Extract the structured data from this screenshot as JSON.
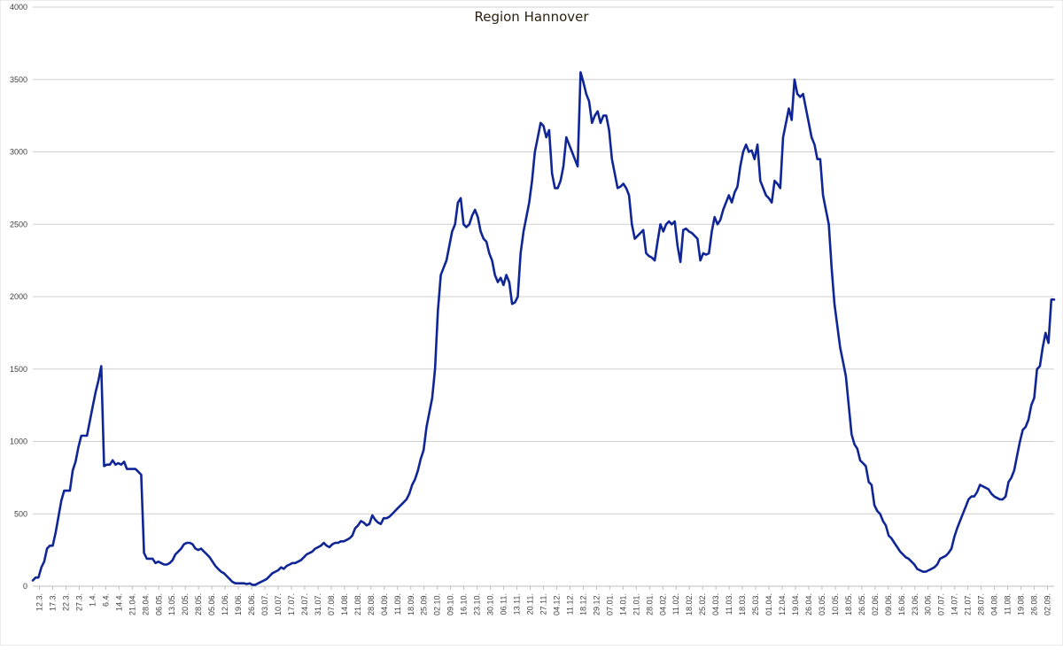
{
  "chart_data": {
    "type": "line",
    "title": "Region Hannover",
    "xlabel": "",
    "ylabel": "",
    "ylim": [
      0,
      4000
    ],
    "y_ticks": [
      0,
      500,
      1000,
      1500,
      2000,
      2500,
      3000,
      3500,
      4000
    ],
    "grid": true,
    "legend": "none",
    "line_color": "#102596",
    "x_tick_labels": [
      "12.3.",
      "17.3.",
      "22.3.",
      "27.3.",
      "1.4.",
      "6.4.",
      "14.4.",
      "21.04.",
      "28.04.",
      "06.05.",
      "13.05.",
      "20.05.",
      "28.05.",
      "05.06.",
      "12.06.",
      "19.06.",
      "26.06.",
      "03.07.",
      "10.07.",
      "17.07.",
      "24.07.",
      "31.07.",
      "07.08.",
      "14.08.",
      "21.08.",
      "28.08.",
      "04.09.",
      "11.09.",
      "18.09.",
      "25.09.",
      "02.10.",
      "09.10.",
      "16.10.",
      "23.10.",
      "30.10.",
      "06.11.",
      "13.11.",
      "20.11.",
      "27.11.",
      "04.12.",
      "11.12.",
      "18.12.",
      "29.12.",
      "07.01.",
      "14.01.",
      "21.01.",
      "28.01.",
      "04.02.",
      "11.02.",
      "18.02.",
      "25.02.",
      "04.03.",
      "11.03.",
      "18.03.",
      "25.03.",
      "01.04.",
      "12.04.",
      "19.04.",
      "26.04.",
      "03.05.",
      "10.05.",
      "18.05.",
      "26.05.",
      "02.06.",
      "09.06.",
      "16.06.",
      "23.06.",
      "30.06.",
      "07.07.",
      "14.07.",
      "21.07.",
      "28.07.",
      "04.08.",
      "11.08.",
      "19.08.",
      "26.08.",
      "02.09."
    ],
    "series": [
      {
        "values": [
          40,
          60,
          60,
          130,
          170,
          260,
          280,
          280,
          370,
          480,
          590,
          660,
          660,
          660,
          800,
          860,
          960,
          1040,
          1040,
          1040,
          1140,
          1240,
          1340,
          1420,
          1520,
          830,
          840,
          840,
          870,
          840,
          850,
          840,
          860,
          810,
          810,
          810,
          810,
          790,
          770,
          230,
          190,
          190,
          190,
          160,
          170,
          160,
          150,
          150,
          160,
          180,
          220,
          240,
          260,
          290,
          300,
          300,
          290,
          260,
          250,
          260,
          240,
          220,
          200,
          170,
          140,
          120,
          100,
          90,
          70,
          50,
          30,
          20,
          20,
          20,
          20,
          15,
          20,
          10,
          10,
          20,
          30,
          40,
          50,
          70,
          90,
          100,
          110,
          130,
          120,
          140,
          150,
          160,
          160,
          170,
          180,
          200,
          220,
          230,
          240,
          260,
          270,
          280,
          300,
          280,
          270,
          290,
          300,
          300,
          310,
          310,
          320,
          330,
          350,
          400,
          420,
          450,
          440,
          420,
          430,
          490,
          460,
          440,
          430,
          470,
          470,
          480,
          500,
          520,
          540,
          560,
          580,
          600,
          640,
          700,
          740,
          800,
          880,
          940,
          1100,
          1200,
          1300,
          1500,
          1900,
          2150,
          2200,
          2250,
          2350,
          2450,
          2500,
          2650,
          2680,
          2500,
          2480,
          2500,
          2560,
          2600,
          2550,
          2450,
          2400,
          2380,
          2300,
          2250,
          2150,
          2100,
          2130,
          2080,
          2150,
          2100,
          1950,
          1960,
          2000,
          2300,
          2450,
          2550,
          2650,
          2800,
          3000,
          3100,
          3200,
          3180,
          3100,
          3150,
          2850,
          2750,
          2750,
          2800,
          2900,
          3100,
          3050,
          3000,
          2950,
          2900,
          3550,
          3480,
          3400,
          3350,
          3200,
          3250,
          3280,
          3200,
          3250,
          3250,
          3150,
          2950,
          2850,
          2750,
          2760,
          2780,
          2750,
          2700,
          2500,
          2400,
          2420,
          2440,
          2460,
          2300,
          2280,
          2270,
          2250,
          2380,
          2500,
          2450,
          2500,
          2520,
          2500,
          2520,
          2350,
          2240,
          2460,
          2470,
          2450,
          2440,
          2420,
          2400,
          2250,
          2300,
          2290,
          2300,
          2450,
          2550,
          2500,
          2530,
          2600,
          2650,
          2700,
          2650,
          2720,
          2760,
          2900,
          3000,
          3050,
          3000,
          3010,
          2950,
          3050,
          2800,
          2750,
          2700,
          2680,
          2650,
          2800,
          2780,
          2750,
          3100,
          3200,
          3300,
          3220,
          3500,
          3400,
          3380,
          3400,
          3300,
          3200,
          3100,
          3050,
          2950,
          2950,
          2700,
          2600,
          2500,
          2200,
          1950,
          1800,
          1650,
          1550,
          1450,
          1250,
          1050,
          980,
          950,
          870,
          850,
          830,
          720,
          700,
          560,
          520,
          500,
          450,
          420,
          350,
          330,
          300,
          270,
          240,
          220,
          200,
          190,
          170,
          150,
          120,
          110,
          100,
          100,
          110,
          120,
          130,
          150,
          190,
          200,
          210,
          230,
          260,
          340,
          400,
          450,
          500,
          550,
          600,
          620,
          620,
          650,
          700,
          690,
          680,
          670,
          640,
          620,
          610,
          600,
          600,
          620,
          720,
          750,
          800,
          900,
          1000,
          1080,
          1100,
          1150,
          1250,
          1300,
          1500,
          1520,
          1650,
          1750,
          1680,
          1980,
          1980
        ]
      }
    ]
  }
}
